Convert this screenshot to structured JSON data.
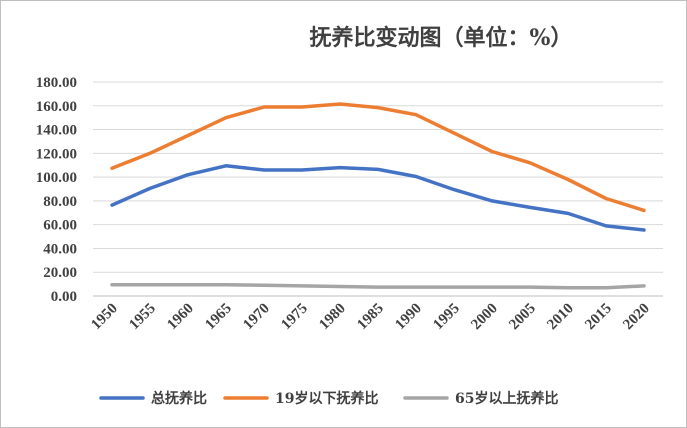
{
  "chart_data": {
    "type": "line",
    "title": "抚养比变动图（单位：%）",
    "x": [
      "1950",
      "1955",
      "1960",
      "1965",
      "1970",
      "1975",
      "1980",
      "1985",
      "1990",
      "1995",
      "2000",
      "2005",
      "2010",
      "2015",
      "2020"
    ],
    "y_ticks": [
      "0.00",
      "20.00",
      "40.00",
      "60.00",
      "80.00",
      "100.00",
      "120.00",
      "140.00",
      "160.00",
      "180.00"
    ],
    "ylim": [
      0,
      180
    ],
    "grid": true,
    "legend_position": "bottom",
    "series": [
      {
        "name": "总抚养比",
        "color": "#4472C4",
        "values": [
          76.5,
          90.5,
          102,
          109.5,
          106,
          106,
          108,
          106.5,
          100.5,
          89.5,
          80,
          74.5,
          69.5,
          59,
          55.5
        ]
      },
      {
        "name": "19岁以下抚养比",
        "color": "#ED7D31",
        "values": [
          107.5,
          120,
          135,
          150,
          159,
          159,
          161.5,
          158.5,
          152.5,
          137,
          121.5,
          112,
          98,
          82,
          72
        ]
      },
      {
        "name": "65岁以上抚养比",
        "color": "#A5A5A5",
        "values": [
          9.5,
          9.5,
          9.5,
          9.5,
          9,
          8.5,
          8,
          7.5,
          7.5,
          7.5,
          7.5,
          7.5,
          7,
          7,
          8.5
        ]
      }
    ]
  }
}
